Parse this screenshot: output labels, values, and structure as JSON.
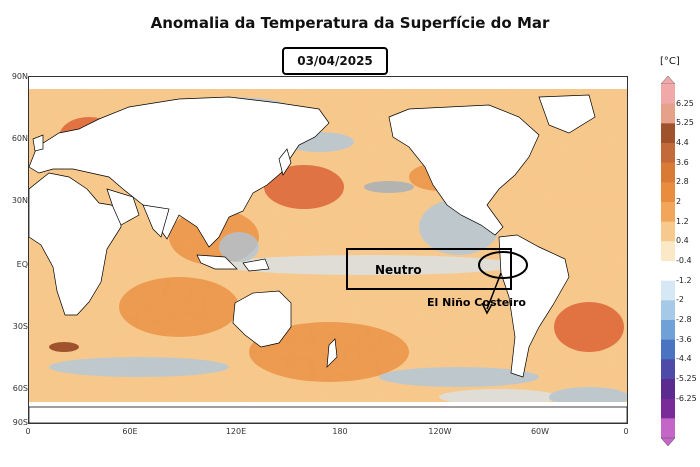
{
  "title": "Anomalia da Temperatura da Superfície do Mar",
  "date": "03/04/2025",
  "lat_ticks": [
    "90N",
    "60N",
    "30N",
    "EQ",
    "30S",
    "60S",
    "90S"
  ],
  "lon_ticks": [
    "0",
    "60E",
    "120E",
    "180",
    "120W",
    "60W",
    "0"
  ],
  "annotations": {
    "neutral": "Neutro",
    "coastal_el_nino": "El Niño Costeiro"
  },
  "colorbar": {
    "unit": "[°C]",
    "labels": [
      "6.25",
      "5.25",
      "4.4",
      "3.6",
      "2.8",
      "2",
      "1.2",
      "0.4",
      "-0.4",
      "-1.2",
      "-2",
      "-2.8",
      "-3.6",
      "-4.4",
      "-5.25",
      "-6.25"
    ],
    "colors": [
      "#f0a8a8",
      "#e6a18a",
      "#a0522d",
      "#c26a3a",
      "#d97b35",
      "#ea8c3e",
      "#f2a65a",
      "#f6c98d",
      "#fbe8c7",
      "#ffffff",
      "#d6e7f5",
      "#a6c9e8",
      "#6fa0d6",
      "#4a73c1",
      "#4d4aa8",
      "#5b2b8f",
      "#7a2b9a",
      "#c466c8"
    ]
  },
  "colors": {
    "ocean_warm": "#f2a65a",
    "ocean_hot": "#d9572b",
    "ocean_cool": "#a6c9e8",
    "land": "#ffffff",
    "coast": "#000000"
  }
}
